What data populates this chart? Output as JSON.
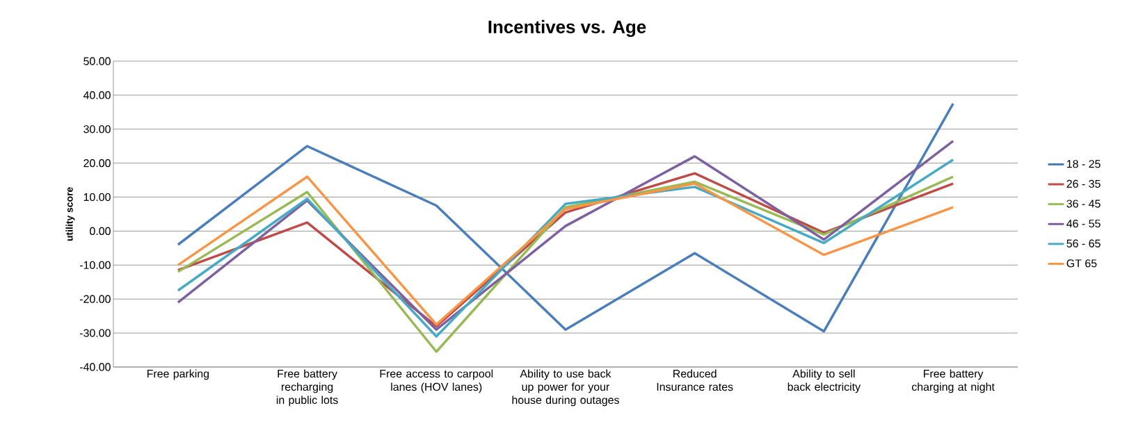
{
  "chart_data": {
    "type": "line",
    "title": "Incentives vs. Age",
    "ylabel": "utility score",
    "categories": [
      "Free parking",
      "Free battery recharging in public lots",
      "Free access to carpool lanes (HOV lanes)",
      "Ability to use back up power for your house during outages",
      "Reduced Insurance rates",
      "Ability to sell back electricity",
      "Free battery charging at night"
    ],
    "series": [
      {
        "name": "18 - 25",
        "color": "#4a7ebb",
        "values": [
          -4,
          25,
          7.5,
          -29,
          -6.5,
          -29.5,
          37.5
        ]
      },
      {
        "name": "26 - 35",
        "color": "#be4b48",
        "values": [
          -11.5,
          2.5,
          -28,
          5.5,
          17,
          -0.5,
          14
        ]
      },
      {
        "name": "36 - 45",
        "color": "#98b954",
        "values": [
          -12,
          11.5,
          -35.5,
          7,
          14.5,
          -1,
          16
        ]
      },
      {
        "name": "46 - 55",
        "color": "#7d60a0",
        "values": [
          -21,
          9,
          -29,
          1.5,
          22,
          -2.5,
          26.5
        ]
      },
      {
        "name": "56 - 65",
        "color": "#46aac5",
        "values": [
          -17.5,
          9.5,
          -31,
          8,
          13,
          -3.5,
          21
        ]
      },
      {
        "name": "GT 65",
        "color": "#f79646",
        "values": [
          -10,
          16,
          -27.5,
          6.5,
          14,
          -7,
          7
        ]
      }
    ],
    "ylim": [
      -40,
      50
    ],
    "yticks": [
      {
        "value": -40,
        "label": "-40.00"
      },
      {
        "value": -30,
        "label": "-30.00"
      },
      {
        "value": -20,
        "label": "-20.00"
      },
      {
        "value": -10,
        "label": "-10.00"
      },
      {
        "value": 0,
        "label": "0.00"
      },
      {
        "value": 10,
        "label": "10.00"
      },
      {
        "value": 20,
        "label": "20.00"
      },
      {
        "value": 30,
        "label": "30.00"
      },
      {
        "value": 40,
        "label": "40.00"
      },
      {
        "value": 50,
        "label": "50.00"
      }
    ],
    "grid": "y",
    "legend": "right",
    "marker": "none",
    "line_style": "solid"
  }
}
